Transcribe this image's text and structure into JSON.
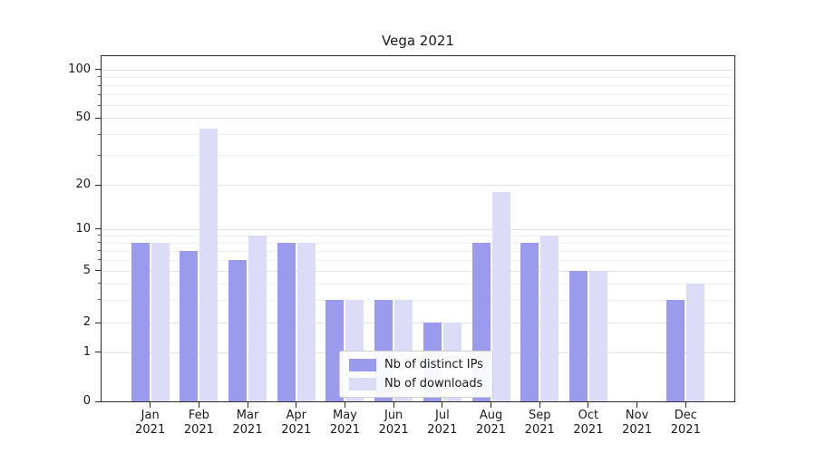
{
  "title": "Vega 2021",
  "chart_data": {
    "type": "bar",
    "title": "Vega 2021",
    "categories": [
      "Jan 2021",
      "Feb 2021",
      "Mar 2021",
      "Apr 2021",
      "May 2021",
      "Jun 2021",
      "Jul 2021",
      "Aug 2021",
      "Sep 2021",
      "Oct 2021",
      "Nov 2021",
      "Dec 2021"
    ],
    "series": [
      {
        "name": "Nb of distinct IPs",
        "color": "#9b9bee",
        "values": [
          8,
          7,
          6,
          8,
          3,
          3,
          2,
          8,
          8,
          5,
          0,
          3
        ]
      },
      {
        "name": "Nb of downloads",
        "color": "#dcdcf8",
        "values": [
          8,
          43,
          9,
          8,
          3,
          3,
          2,
          18,
          9,
          5,
          0,
          4
        ]
      }
    ],
    "y_axis": {
      "scale": "symlog",
      "ticks": [
        0,
        1,
        2,
        5,
        10,
        20,
        50,
        100
      ],
      "minor_ticks": [
        3,
        4,
        6,
        7,
        8,
        9,
        30,
        40,
        60,
        70,
        80,
        90
      ]
    },
    "x_axis": {
      "label": ""
    },
    "legend_position": "lower center",
    "grid": true
  }
}
